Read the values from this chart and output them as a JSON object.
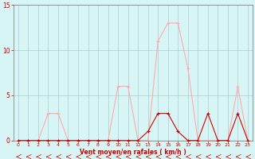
{
  "x": [
    0,
    1,
    2,
    3,
    4,
    5,
    6,
    7,
    8,
    9,
    10,
    11,
    12,
    13,
    14,
    15,
    16,
    17,
    18,
    19,
    20,
    21,
    22,
    23
  ],
  "y_rafales": [
    0,
    0,
    0,
    3,
    3,
    0,
    0,
    0,
    0,
    0,
    6,
    6,
    0,
    0,
    11,
    13,
    13,
    8,
    0,
    0,
    0,
    0,
    6,
    0
  ],
  "y_moyen": [
    0,
    0,
    0,
    0,
    0,
    0,
    0,
    0,
    0,
    0,
    0,
    0,
    0,
    1,
    3,
    3,
    1,
    0,
    0,
    3,
    0,
    0,
    3,
    0
  ],
  "line_color_rafales": "#ffaaaa",
  "line_color_moyen": "#cc0000",
  "marker_color_rafales": "#ffaaaa",
  "marker_color_moyen": "#cc0000",
  "hline_color": "#cc0000",
  "arrow_color": "#cc0000",
  "background_color": "#d8f5f5",
  "grid_color": "#aacccc",
  "axis_color": "#888888",
  "xlabel": "Vent moyen/en rafales ( km/h )",
  "xlabel_color": "#cc0000",
  "tick_color": "#cc0000",
  "ylim": [
    0,
    15
  ],
  "xlim": [
    -0.5,
    23.5
  ],
  "yticks": [
    0,
    5,
    10,
    15
  ],
  "xticks": [
    0,
    1,
    2,
    3,
    4,
    5,
    6,
    7,
    8,
    9,
    10,
    11,
    12,
    13,
    14,
    15,
    16,
    17,
    18,
    19,
    20,
    21,
    22,
    23
  ],
  "figsize": [
    3.2,
    2.0
  ],
  "dpi": 100
}
